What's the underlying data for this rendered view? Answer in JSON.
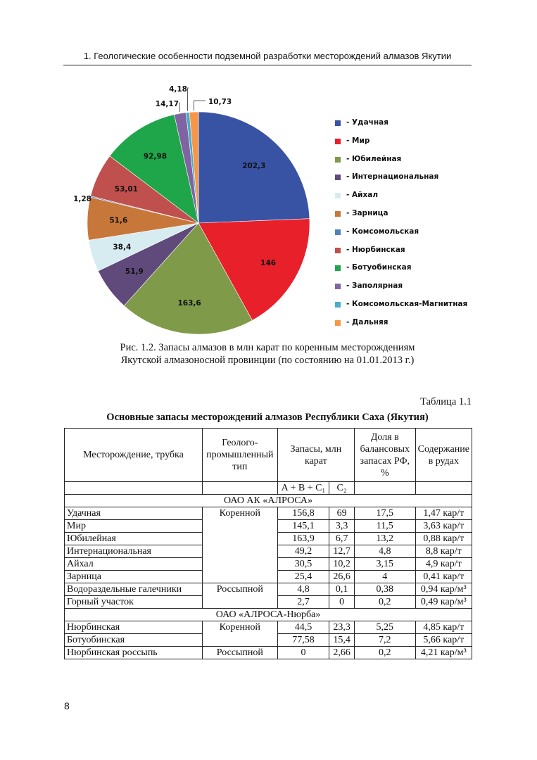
{
  "header": {
    "running_title": "1. Геологические особенности подземной разработки месторождений алмазов Якутии"
  },
  "chart_data": {
    "type": "pie",
    "title": "",
    "start": "12 o'clock, clockwise",
    "slices": [
      {
        "label": "Удачная",
        "value": 202.3,
        "value_text": "202,3",
        "color": "#3953a4"
      },
      {
        "label": "Мир",
        "value": 146,
        "value_text": "146",
        "color": "#e8202a"
      },
      {
        "label": "Юбилейная",
        "value": 163.6,
        "value_text": "163,6",
        "color": "#7f9a48"
      },
      {
        "label": "Интернациональная",
        "value": 51.9,
        "value_text": "51,9",
        "color": "#604a7b"
      },
      {
        "label": "Айхал",
        "value": 38.4,
        "value_text": "38,4",
        "color": "#d6ecf0"
      },
      {
        "label": "Зарница",
        "value": 51.6,
        "value_text": "51,6",
        "color": "#c8773a"
      },
      {
        "label": "Комсомольская",
        "value": 1.28,
        "value_text": "1,28",
        "color": "#4f81bd"
      },
      {
        "label": "Нюрбинская",
        "value": 53.01,
        "value_text": "53,01",
        "color": "#c0504d"
      },
      {
        "label": "Ботуобинская",
        "value": 92.98,
        "value_text": "92,98",
        "color": "#1fa64a"
      },
      {
        "label": "Заполярная",
        "value": 14.17,
        "value_text": "14,17",
        "color": "#8064a2"
      },
      {
        "label": "Комсомольская-Магнитная",
        "value": 4.18,
        "value_text": "4,18",
        "color": "#4bacc6"
      },
      {
        "label": "Дальняя",
        "value": 10.73,
        "value_text": "10,73",
        "color": "#f79646"
      }
    ],
    "legend_placement": "right",
    "legend_prefix": "- "
  },
  "figure": {
    "caption_line1": "Рис. 1.2. Запасы алмазов в млн карат по коренным месторождениям",
    "caption_line2": "Якутской алмазоносной провинции (по состоянию на 01.01.2013 г.)"
  },
  "table": {
    "number": "Таблица 1.1",
    "title": "Основные запасы месторождений алмазов Республики Саха (Якутия)",
    "headers": {
      "deposit": "Месторождение, трубка",
      "type": "Геолого-промышленный тип",
      "reserves": "Запасы, млн карат",
      "share": "Доля в балансовых запасах РФ, %",
      "content": "Содержание в рудах",
      "sub_abc": "A + B + C₁",
      "sub_c2": "C₂"
    },
    "groups": [
      {
        "name": "ОАО АК «АЛРОСА»",
        "rows": [
          [
            "Удачная",
            "Коренной",
            "156,8",
            "69",
            "17,5",
            "1,47 кар/т"
          ],
          [
            "Мир",
            "",
            "145,1",
            "3,3",
            "11,5",
            "3,63 кар/т"
          ],
          [
            "Юбилейная",
            "",
            "163,9",
            "6,7",
            "13,2",
            "0,88 кар/т"
          ],
          [
            "Интернациональная",
            "",
            "49,2",
            "12,7",
            "4,8",
            "8,8 кар/т"
          ],
          [
            "Айхал",
            "",
            "30,5",
            "10,2",
            "3,15",
            "4,9 кар/т"
          ],
          [
            "Зарница",
            "",
            "25,4",
            "26,6",
            "4",
            "0,41 кар/т"
          ],
          [
            "Водораздельные галечники",
            "Россыпной",
            "4,8",
            "0,1",
            "0,38",
            "0,94 кар/м³"
          ],
          [
            "Горный участок",
            "",
            "2,7",
            "0",
            "0,2",
            "0,49 кар/м³"
          ]
        ]
      },
      {
        "name": "ОАО «АЛРОСА-Нюрба»",
        "rows": [
          [
            "Нюрбинская",
            "Коренной",
            "44,5",
            "23,3",
            "5,25",
            "4,85 кар/т"
          ],
          [
            "Ботуобинская",
            "",
            "77,58",
            "15,4",
            "7,2",
            "5,66 кар/т"
          ],
          [
            "Нюрбинская россыпь",
            "Россыпной",
            "0",
            "2,66",
            "0,2",
            "4,21 кар/м³"
          ]
        ]
      }
    ]
  },
  "footer": {
    "page_number": "8"
  }
}
